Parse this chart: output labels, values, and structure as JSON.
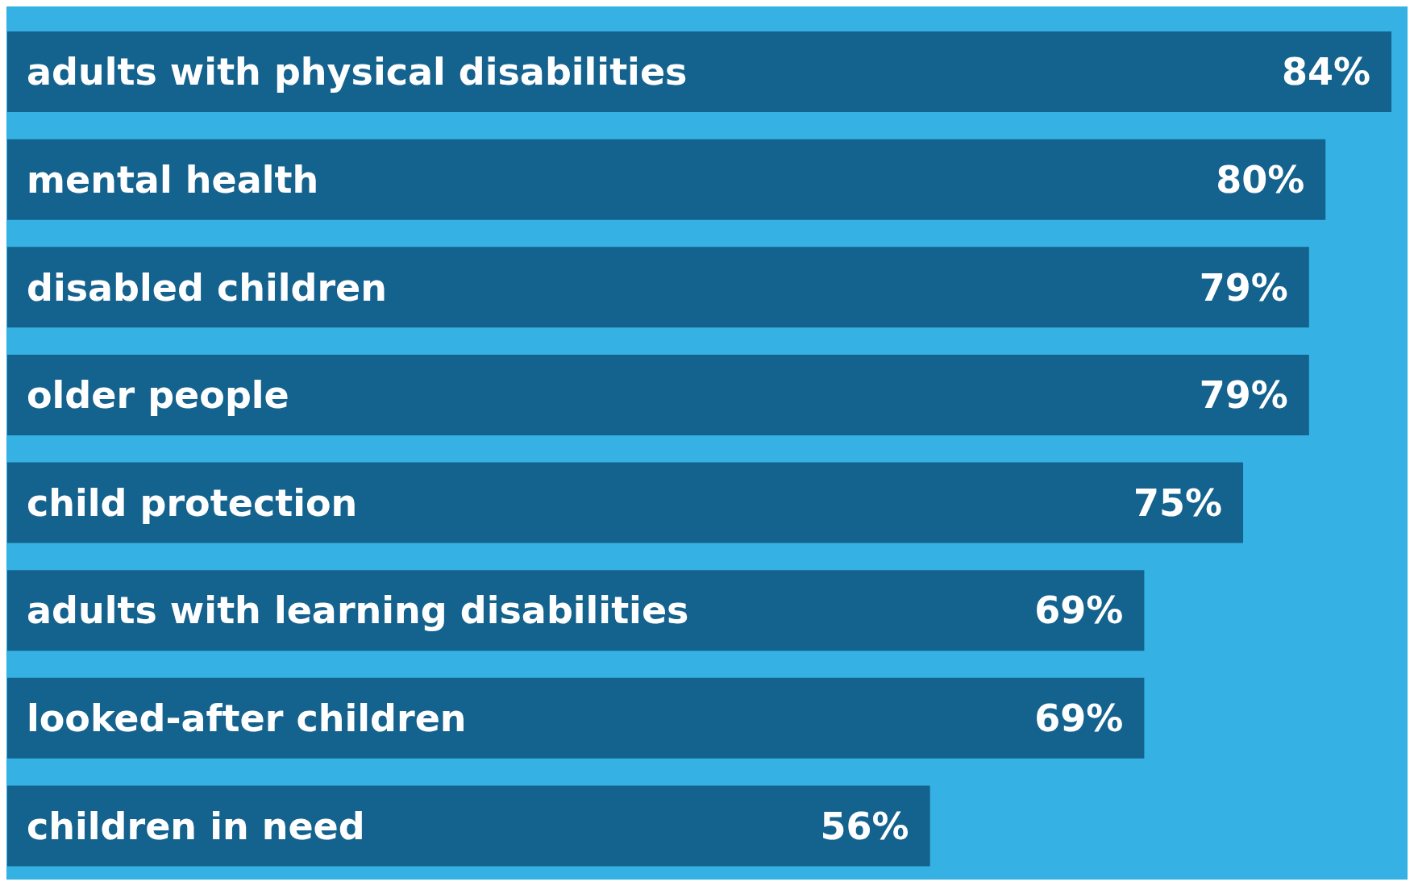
{
  "chart_data": {
    "type": "bar",
    "orientation": "horizontal",
    "categories": [
      "adults with physical disabilities",
      "mental health",
      "disabled children",
      "older people",
      "child protection",
      "adults with learning disabilities",
      "looked-after children",
      "children in need"
    ],
    "values": [
      84,
      80,
      79,
      79,
      75,
      69,
      69,
      56
    ],
    "value_labels": [
      "84%",
      "80%",
      "79%",
      "79%",
      "75%",
      "69%",
      "69%",
      "56%"
    ],
    "color": "#14628e",
    "tick_labels": false
  }
}
